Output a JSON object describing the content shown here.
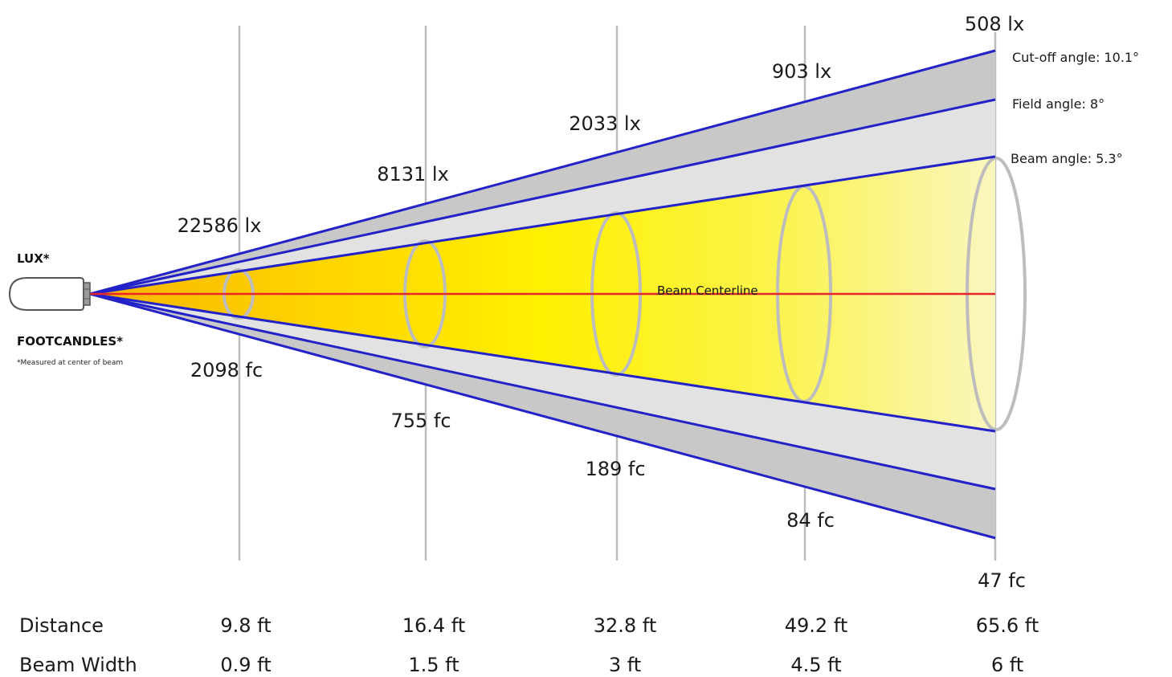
{
  "left_labels": {
    "lux": "LUX*",
    "footcandles": "FOOTCANDLES*",
    "note": "*Measured at center of beam"
  },
  "centerline_label": "Beam Centerline",
  "angles": [
    {
      "label": "Cut-off angle: 10.1°"
    },
    {
      "label": "Field angle: 8°"
    },
    {
      "label": "Beam angle: 5.3°"
    }
  ],
  "stations": [
    {
      "lux": "22586 lx",
      "fc": "2098 fc",
      "distance": "9.8 ft",
      "beam_width": "0.9 ft"
    },
    {
      "lux": "8131 lx",
      "fc": "755 fc",
      "distance": "16.4 ft",
      "beam_width": "1.5 ft"
    },
    {
      "lux": "2033 lx",
      "fc": "189 fc",
      "distance": "32.8 ft",
      "beam_width": "3 ft"
    },
    {
      "lux": "903 lx",
      "fc": "84 fc",
      "distance": "49.2 ft",
      "beam_width": "4.5 ft"
    },
    {
      "lux": "508 lx",
      "fc": "47 fc",
      "distance": "65.6 ft",
      "beam_width": "6 ft"
    }
  ],
  "table": {
    "distance_label": "Distance",
    "beam_width_label": "Beam Width"
  },
  "colors": {
    "beam_edge": "#2222c8",
    "centerline": "#e8262a",
    "cutoff_fill": "#c8c8c8",
    "field_fill": "#e2e2e2",
    "beam_core": "#ffe000",
    "ellipse": "#bdbdbd"
  }
}
